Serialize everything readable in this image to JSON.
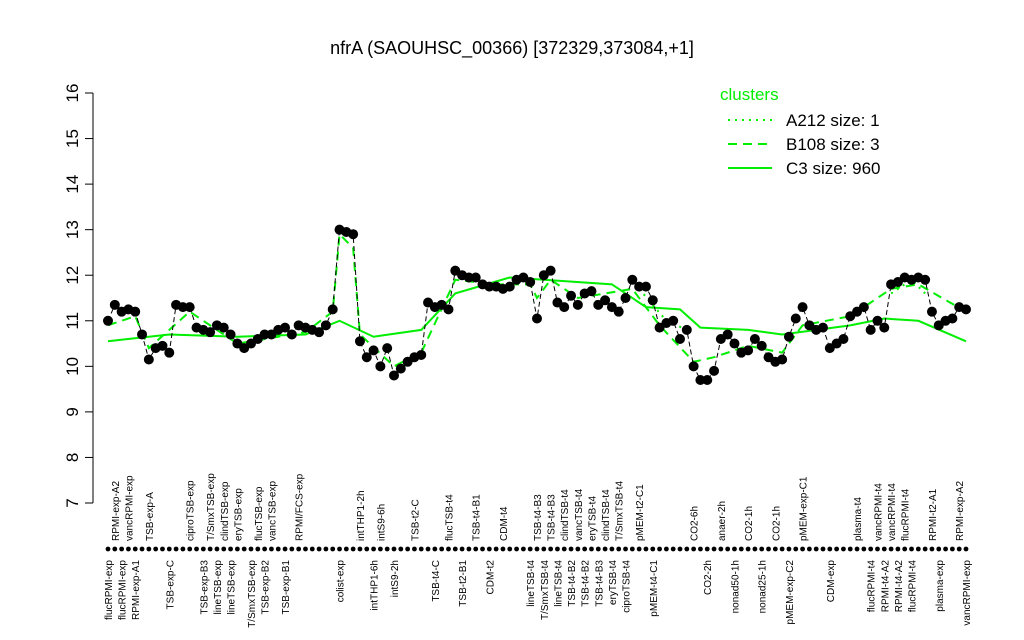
{
  "chart_data": {
    "type": "line",
    "title": "nfrA (SAOUHSC_00366) [372329,373084,+1]",
    "ylim": [
      7,
      16
    ],
    "yticks": [
      7,
      8,
      9,
      10,
      11,
      12,
      13,
      14,
      15,
      16
    ],
    "point_color": "#000000",
    "legend_title": "clusters",
    "legend_position": "top-right",
    "categories": [
      "flucRPMI-exp",
      "RPMI-exp-A2",
      "flucRPMI-exp",
      "vancRPMI-exp",
      "RPMI-exp-A1",
      null,
      "TSB-exp-A",
      null,
      null,
      "TSB-exp-C",
      null,
      null,
      "ciproTSB-exp",
      null,
      "TSB-exp-B3",
      "T/SmxTSB-exp",
      "lineTSB-exp",
      "clindTSB-exp",
      "lineTSB-exp",
      "eryTSB-exp",
      null,
      "T/SmxTSB-exp",
      "flucTSB-exp",
      "TSB-exp-B2",
      "vancTSB-exp",
      null,
      "TSB-exp-B1",
      null,
      "RPMI/FCS-exp",
      null,
      null,
      null,
      null,
      null,
      "colist-exp",
      null,
      null,
      "intTHP1-2h",
      null,
      "intTHP1-6h",
      "intS9-6h",
      null,
      "intS9-2h",
      null,
      null,
      "TSB-t2-C",
      null,
      null,
      "TSB-t4-C",
      null,
      "flucTSB-t4",
      null,
      "TSB-t2-B1",
      null,
      "TSB-t4-B1",
      null,
      "CDM-t2",
      null,
      "CDM-t4",
      null,
      null,
      null,
      "lineTSB-t4",
      "TSB-t4-B3",
      "T/SmxTSB-t4",
      "TSB-t4-B3",
      "lineTSB-t4",
      "clindTSB-t4",
      "TSB-t4-B2",
      "vancTSB-t4",
      "TSB-t4-B2",
      "eryTSB-t4",
      "TSB-t4-B3",
      "clindTSB-t4",
      "eryTSB-t4",
      "T/SmxTSB-t4",
      "ciproTSB-t4",
      null,
      "pMEM-t2-C1",
      null,
      "pMEM-t4-C1",
      null,
      null,
      null,
      null,
      null,
      "CO2-6h",
      null,
      "CO2-2h",
      null,
      "anaer-2h",
      null,
      "nonad50-1h",
      null,
      "CO2-1h",
      null,
      "nonad25-1h",
      null,
      "CO2-1h",
      null,
      "pMEM-exp-C2",
      null,
      "pMEM-exp-C1",
      null,
      null,
      null,
      "CDM-exp",
      null,
      null,
      null,
      "plasma-t4",
      null,
      "flucRPMI-t4",
      "vancRPMI-t4",
      "RPMI-t4-A2",
      "vancRPMI-t4",
      "RPMI-t4-A2",
      "flucRPMI-t4",
      "flucRPMI-t4",
      null,
      null,
      "RPMI-t2-A1",
      "plasma-exp",
      null,
      null,
      "RPMI-exp-A2",
      "vancRPMI-exp"
    ],
    "values": [
      11.0,
      11.35,
      11.2,
      11.25,
      11.2,
      10.7,
      10.15,
      10.4,
      10.45,
      10.3,
      11.35,
      11.3,
      11.3,
      10.85,
      10.8,
      10.75,
      10.9,
      10.85,
      10.7,
      10.5,
      10.4,
      10.5,
      10.6,
      10.7,
      10.7,
      10.8,
      10.85,
      10.7,
      10.9,
      10.85,
      10.8,
      10.75,
      10.9,
      11.25,
      13.0,
      12.95,
      12.9,
      10.55,
      10.2,
      10.35,
      10.0,
      10.4,
      9.8,
      9.95,
      10.1,
      10.2,
      10.25,
      11.4,
      11.3,
      11.35,
      11.25,
      12.1,
      12.0,
      11.95,
      11.95,
      11.8,
      11.75,
      11.75,
      11.7,
      11.75,
      11.9,
      11.95,
      11.85,
      11.05,
      12.0,
      12.1,
      11.4,
      11.3,
      11.55,
      11.35,
      11.6,
      11.65,
      11.35,
      11.45,
      11.3,
      11.2,
      11.5,
      11.9,
      11.75,
      11.75,
      11.45,
      10.85,
      10.95,
      11.0,
      10.6,
      10.8,
      10.0,
      9.7,
      9.7,
      9.9,
      10.6,
      10.7,
      10.5,
      10.3,
      10.35,
      10.6,
      10.45,
      10.2,
      10.1,
      10.15,
      10.65,
      11.05,
      11.3,
      10.9,
      10.8,
      10.85,
      10.4,
      10.5,
      10.6,
      11.1,
      11.2,
      11.3,
      10.8,
      11.0,
      10.85,
      11.8,
      11.85,
      11.95,
      11.9,
      11.95,
      11.9,
      11.2,
      10.9,
      11.0,
      11.05,
      11.3,
      11.25
    ],
    "series": [
      {
        "name": "A212 size: 1",
        "color": "#00ee00",
        "line_style": "dotted",
        "x": [
          79,
          83,
          86,
          100,
          116,
          119,
          121
        ],
        "values": [
          11.7,
          11.0,
          10.8,
          null,
          11.6,
          11.9,
          11.6
        ]
      },
      {
        "name": "B108 size: 3",
        "color": "#00ee00",
        "line_style": "dashed",
        "x": [
          1,
          5,
          7,
          13,
          20,
          30,
          34,
          35,
          37,
          38,
          43,
          47,
          52,
          58,
          63,
          64,
          66,
          70,
          78,
          82,
          87,
          90,
          95,
          100,
          103,
          110,
          116,
          120,
          127
        ],
        "values": [
          10.9,
          11.1,
          10.4,
          11.2,
          10.5,
          10.75,
          11.2,
          12.9,
          12.6,
          10.7,
          10.0,
          10.3,
          11.9,
          11.8,
          11.8,
          11.5,
          11.9,
          11.5,
          11.7,
          10.9,
          10.1,
          10.2,
          10.45,
          10.3,
          10.9,
          11.1,
          11.7,
          11.8,
          11.2
        ]
      },
      {
        "name": "C3 size: 960",
        "color": "#00ee00",
        "line_style": "solid",
        "x": [
          1,
          10,
          20,
          30,
          35,
          40,
          47,
          52,
          60,
          65,
          75,
          80,
          85,
          88,
          95,
          100,
          110,
          115,
          120,
          127
        ],
        "values": [
          10.55,
          10.7,
          10.65,
          10.7,
          11.0,
          10.65,
          10.8,
          11.6,
          11.95,
          11.9,
          11.8,
          11.3,
          11.25,
          10.85,
          10.8,
          10.7,
          10.9,
          11.05,
          11.0,
          10.55
        ]
      }
    ]
  }
}
